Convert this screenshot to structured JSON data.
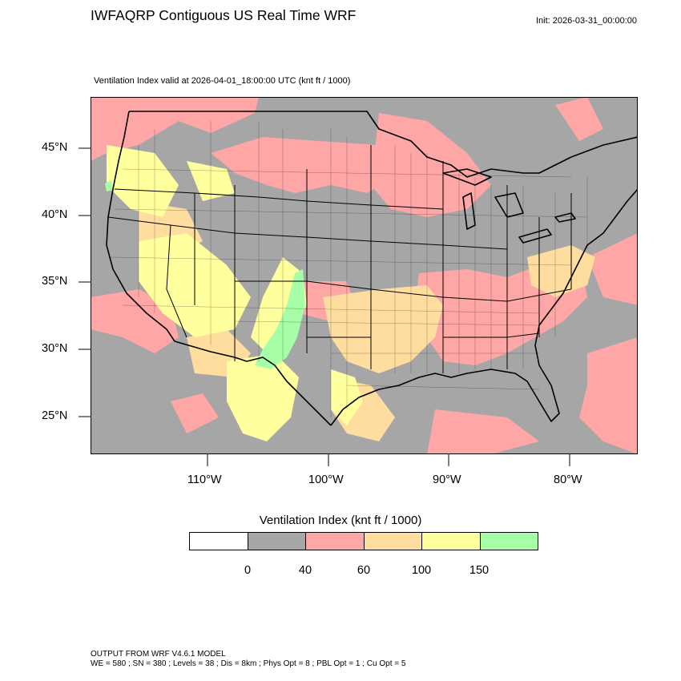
{
  "header": {
    "title": "IWFAQRP Contiguous US Real Time WRF",
    "init": "Init: 2026-03-31_00:00:00",
    "subtitle": "Ventilation Index valid at 2026-04-01_18:00:00 UTC   (knt ft / 1000)"
  },
  "map": {
    "lat_labels": [
      "45°N",
      "40°N",
      "35°N",
      "30°N",
      "25°N"
    ],
    "lon_labels": [
      "110°W",
      "100°W",
      "90°W",
      "80°W"
    ],
    "colors": {
      "background": "#a6a6a6",
      "class_40_60": "#ffa6a6",
      "class_60_100": "#ffdd9e",
      "class_100_150": "#ffff9e",
      "class_150_plus": "#a6ffa6",
      "boundaries": "#000000"
    }
  },
  "colorbar": {
    "title": "Ventilation Index  (knt ft / 1000)",
    "classes": [
      {
        "color": "#ffffff"
      },
      {
        "color": "#a6a6a6"
      },
      {
        "color": "#ffa6a6"
      },
      {
        "color": "#ffdd9e"
      },
      {
        "color": "#ffff9e"
      },
      {
        "color": "#a6ffa6"
      }
    ],
    "labels": [
      "0",
      "40",
      "60",
      "100",
      "150"
    ]
  },
  "footer": {
    "line1": "OUTPUT FROM WRF V4.6.1 MODEL",
    "line2": "WE = 580 ; SN = 380 ; Levels = 38 ; Dis = 8km ; Phys Opt = 8 ; PBL Opt = 1 ; Cu Opt = 5"
  }
}
